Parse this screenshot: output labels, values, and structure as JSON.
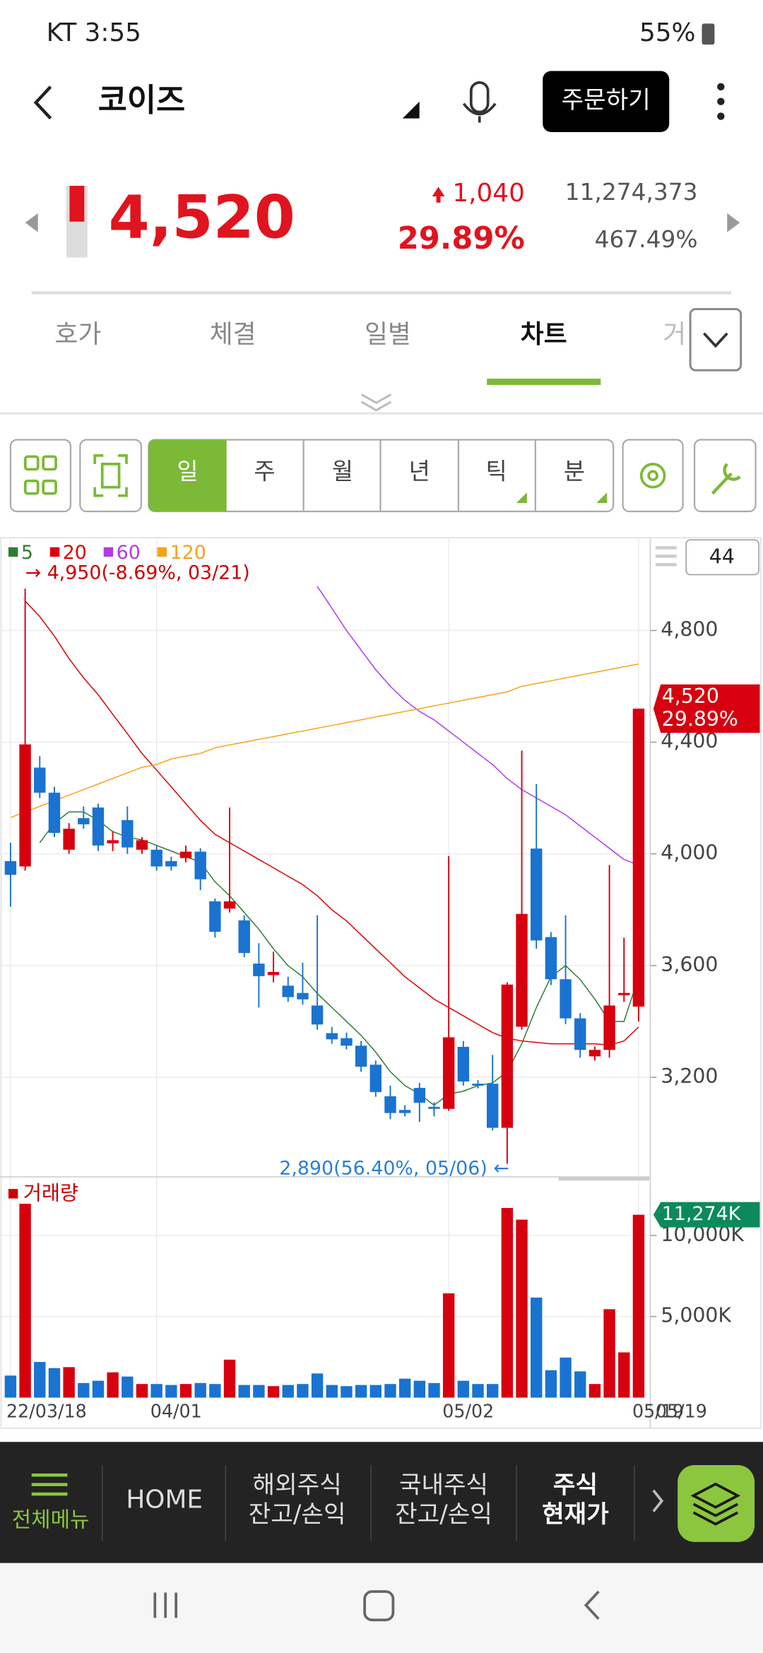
{
  "status_bar": {
    "carrier_time": "KT 3:55",
    "battery": "55%"
  },
  "header": {
    "title": "코이즈",
    "order_button": "주문하기"
  },
  "quote": {
    "price": "4,520",
    "change": "1,040",
    "change_rate": "29.89%",
    "volume": "11,274,373",
    "volume_rate": "467.49%"
  },
  "tabs": [
    "호가",
    "체결",
    "일별",
    "차트",
    "거"
  ],
  "periods": [
    "일",
    "주",
    "월",
    "년",
    "틱",
    "분"
  ],
  "chart_data": {
    "type": "candlestick",
    "count": "44",
    "categories": [
      "22/03/18",
      null,
      null,
      null,
      null,
      null,
      null,
      null,
      null,
      null,
      "04/01",
      null,
      null,
      null,
      null,
      null,
      null,
      null,
      null,
      null,
      null,
      null,
      null,
      null,
      null,
      null,
      null,
      null,
      null,
      null,
      "05/02",
      null,
      null,
      null,
      null,
      null,
      null,
      null,
      null,
      null,
      null,
      null,
      null,
      "05/19"
    ],
    "open": [
      3974,
      3955,
      4309,
      4219,
      4015,
      4128,
      4166,
      4038,
      4121,
      4015,
      4015,
      3974,
      3985,
      4008,
      3830,
      3804,
      3762,
      3607,
      3566,
      3528,
      3502,
      3457,
      3358,
      3340,
      3313,
      3245,
      3132,
      3083,
      3162,
      3094,
      3087,
      3309,
      3177,
      3177,
      3019,
      3381,
      4019,
      3702,
      3551,
      3411,
      3275,
      3298,
      3494,
      3453
    ],
    "high": [
      4040,
      4950,
      4350,
      4240,
      4110,
      4170,
      4180,
      4080,
      4170,
      4060,
      4030,
      3990,
      4030,
      4020,
      3840,
      4166,
      3780,
      3680,
      3650,
      3560,
      3610,
      3780,
      3380,
      3360,
      3330,
      3260,
      3170,
      3100,
      3180,
      3110,
      3992,
      3330,
      3190,
      3280,
      3540,
      4370,
      4250,
      3720,
      3780,
      3430,
      3310,
      3960,
      3700,
      4520
    ],
    "low": [
      3811,
      3940,
      4200,
      4060,
      4000,
      4090,
      4010,
      4010,
      4000,
      4000,
      3940,
      3940,
      3970,
      3870,
      3700,
      3790,
      3630,
      3450,
      3540,
      3470,
      3460,
      3370,
      3320,
      3300,
      3220,
      3130,
      3050,
      3060,
      3040,
      3060,
      3080,
      3170,
      3160,
      3010,
      2890,
      3370,
      3660,
      3530,
      3390,
      3270,
      3260,
      3270,
      3470,
      3400
    ],
    "close": [
      3925,
      4392,
      4219,
      4075,
      4090,
      4106,
      4030,
      4049,
      4023,
      4049,
      3955,
      3955,
      4008,
      3909,
      3721,
      3830,
      3645,
      3562,
      3577,
      3487,
      3479,
      3389,
      3336,
      3313,
      3238,
      3147,
      3072,
      3072,
      3109,
      3087,
      3343,
      3185,
      3170,
      3019,
      3532,
      3785,
      3690,
      3551,
      3411,
      3298,
      3298,
      3457,
      3502,
      4520
    ],
    "up_color": "#d7000f",
    "down_color": "#1a73d0",
    "ylim": [
      2849,
      5132
    ],
    "yticks": [
      {
        "value": 3200,
        "label": "3,200"
      },
      {
        "value": 3600,
        "label": "3,600"
      },
      {
        "value": 4000,
        "label": "4,000"
      },
      {
        "value": 4400,
        "label": "4,400"
      },
      {
        "value": 4800,
        "label": "4,800"
      }
    ],
    "grid": true,
    "high_annotation": "→ 4,950(-8.69%, 03/21)",
    "low_annotation": "2,890(56.40%, 05/06) ←",
    "last_price_label": "4,520",
    "last_change_label": "29.89%",
    "series": [
      {
        "name": "5",
        "color": "#2e7d32",
        "values": [
          null,
          null,
          4040,
          4110,
          4150,
          4150,
          4120,
          4080,
          4060,
          4050,
          4030,
          4010,
          3990,
          3970,
          3900,
          3850,
          3790,
          3730,
          3660,
          3600,
          3560,
          3500,
          3450,
          3400,
          3350,
          3290,
          3220,
          3170,
          3140,
          3100,
          3140,
          3150,
          3170,
          3180,
          3220,
          3320,
          3450,
          3560,
          3600,
          3550,
          3480,
          3400,
          3400,
          3560
        ]
      },
      {
        "name": "20",
        "color": "#e00000",
        "values": [
          null,
          4905,
          4850,
          4780,
          4700,
          4630,
          4570,
          4500,
          4430,
          4360,
          4300,
          4240,
          4180,
          4120,
          4070,
          4040,
          4010,
          3980,
          3950,
          3920,
          3890,
          3850,
          3800,
          3760,
          3710,
          3660,
          3610,
          3560,
          3520,
          3480,
          3450,
          3420,
          3390,
          3360,
          3340,
          3330,
          3325,
          3320,
          3320,
          3320,
          3320,
          3315,
          3330,
          3380
        ]
      },
      {
        "name": "60",
        "color": "#b23be6",
        "values": [
          null,
          null,
          null,
          null,
          null,
          null,
          null,
          null,
          null,
          null,
          null,
          null,
          null,
          null,
          null,
          null,
          null,
          null,
          null,
          null,
          null,
          4958,
          4880,
          4800,
          4730,
          4660,
          4600,
          4550,
          4510,
          4480,
          4440,
          4400,
          4360,
          4320,
          4270,
          4230,
          4200,
          4170,
          4140,
          4100,
          4060,
          4020,
          3980,
          3960
        ]
      },
      {
        "name": "120",
        "color": "#f5a31a",
        "values": [
          4130,
          4150,
          4170,
          4190,
          4210,
          4230,
          4250,
          4270,
          4290,
          4310,
          4320,
          4340,
          4350,
          4360,
          4380,
          4390,
          4400,
          4410,
          4420,
          4430,
          4440,
          4450,
          4460,
          4470,
          4480,
          4490,
          4500,
          4510,
          4520,
          4530,
          4540,
          4550,
          4560,
          4570,
          4580,
          4600,
          4610,
          4620,
          4630,
          4640,
          4650,
          4660,
          4670,
          4680
        ]
      }
    ],
    "volume": {
      "title": "거래량",
      "values": [
        1360,
        11950,
        2200,
        1820,
        1880,
        900,
        1040,
        1560,
        1300,
        840,
        840,
        780,
        840,
        900,
        840,
        2340,
        780,
        780,
        710,
        780,
        840,
        1490,
        780,
        710,
        780,
        780,
        840,
        1170,
        1040,
        900,
        6430,
        1040,
        840,
        840,
        11690,
        10970,
        6170,
        1690,
        2470,
        1620,
        840,
        5450,
        2790,
        11274
      ],
      "current_label": "11,274K",
      "ylim": [
        0,
        13250
      ],
      "yticks": [
        {
          "value": 5000,
          "label": "5,000K"
        },
        {
          "value": 10000,
          "label": "10,000K"
        }
      ]
    }
  },
  "bottom_nav": {
    "menu": "전체메뉴",
    "items": [
      [
        "HOME"
      ],
      [
        "해외주식",
        "잔고/손익"
      ],
      [
        "국내주식",
        "잔고/손익"
      ],
      [
        "주식",
        "현재가"
      ]
    ]
  }
}
